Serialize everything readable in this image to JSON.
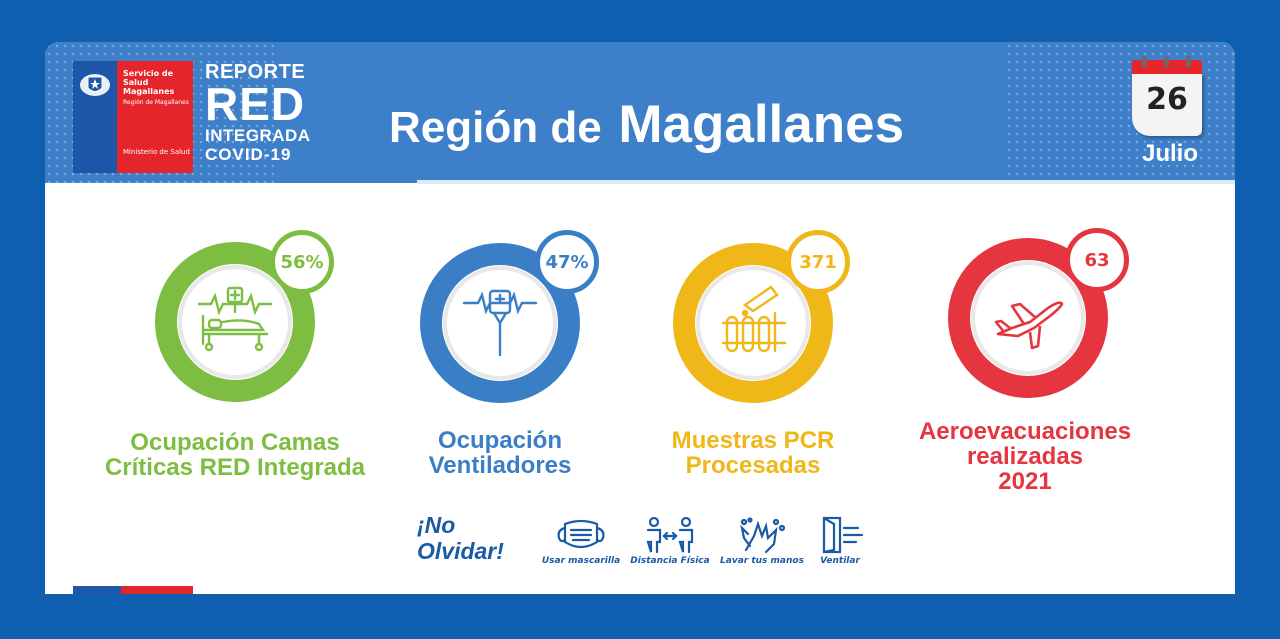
{
  "header": {
    "logo": {
      "line1": "Servicio de Salud Magallanes",
      "line2": "Región de Magallanes",
      "line3": "Ministerio de Salud"
    },
    "report": {
      "line1": "REPORTE",
      "line2": "RED",
      "line3": "INTEGRADA",
      "line4": "COVID-19"
    },
    "title_part1": "Región de ",
    "title_part2": "Magallanes",
    "date": {
      "day": "26",
      "month": "Julio"
    }
  },
  "colors": {
    "green": "#7dbe42",
    "blue": "#3a7fc6",
    "yellow": "#f0b719",
    "red": "#e5353f",
    "header_blue": "#3d7fc8",
    "frame_blue": "#0e5fb0"
  },
  "stats": [
    {
      "value": "56%",
      "label_line1": "Ocupación Camas",
      "label_line2": "Críticas RED Integrada",
      "label_line3": "",
      "icon": "hospital-bed-icon"
    },
    {
      "value": "47%",
      "label_line1": "Ocupación",
      "label_line2": "Ventiladores",
      "label_line3": "",
      "icon": "ventilator-icon"
    },
    {
      "value": "371",
      "label_line1": "Muestras PCR",
      "label_line2": "Procesadas",
      "label_line3": "",
      "icon": "test-tubes-icon"
    },
    {
      "value": "63",
      "label_line1": "Aeroevacuaciones",
      "label_line2": "realizadas",
      "label_line3": "2021",
      "icon": "airplane-icon"
    }
  ],
  "reminder": {
    "title_line1": "¡No",
    "title_line2": "Olvidar!",
    "tips": [
      {
        "label": "Usar mascarilla",
        "icon": "mask-icon"
      },
      {
        "label": "Distancia Física",
        "icon": "distance-icon"
      },
      {
        "label": "Lavar tus manos",
        "icon": "hand-wash-icon"
      },
      {
        "label": "Ventilar",
        "icon": "window-icon"
      }
    ]
  }
}
